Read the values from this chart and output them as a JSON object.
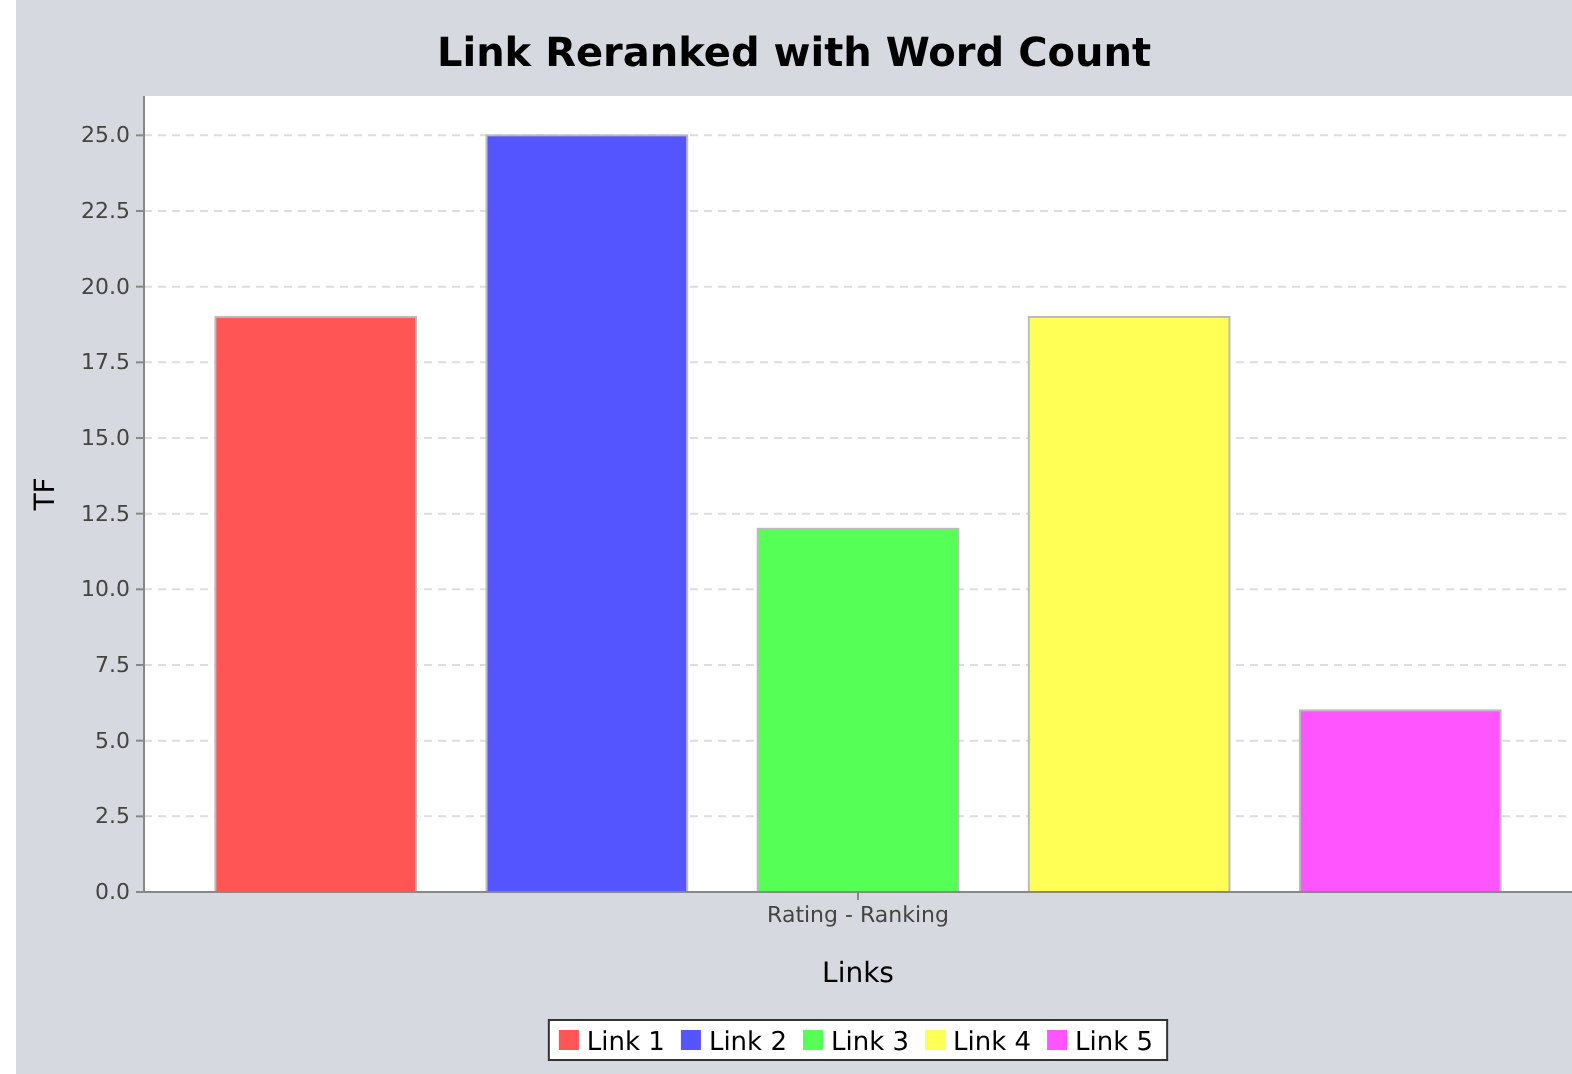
{
  "chart_data": {
    "type": "bar",
    "title": "Link Reranked with Word Count",
    "xlabel": "Links",
    "ylabel": "TF",
    "categories": [
      "Rating - Ranking"
    ],
    "series": [
      {
        "name": "Link 1",
        "color": "#ff5555",
        "values": [
          19
        ]
      },
      {
        "name": "Link 2",
        "color": "#5555ff",
        "values": [
          25
        ]
      },
      {
        "name": "Link 3",
        "color": "#55ff55",
        "values": [
          12
        ]
      },
      {
        "name": "Link 4",
        "color": "#ffff55",
        "values": [
          19
        ]
      },
      {
        "name": "Link 5",
        "color": "#ff55ff",
        "values": [
          6
        ]
      }
    ],
    "ylim": [
      0,
      26.3
    ],
    "yticks": [
      {
        "value": 0,
        "label": "0.0"
      },
      {
        "value": 2.5,
        "label": "2.5"
      },
      {
        "value": 5,
        "label": "5.0"
      },
      {
        "value": 7.5,
        "label": "7.5"
      },
      {
        "value": 10,
        "label": "10.0"
      },
      {
        "value": 12.5,
        "label": "12.5"
      },
      {
        "value": 15,
        "label": "15.0"
      },
      {
        "value": 17.5,
        "label": "17.5"
      },
      {
        "value": 20,
        "label": "20.0"
      },
      {
        "value": 22.5,
        "label": "22.5"
      },
      {
        "value": 25,
        "label": "25.0"
      }
    ],
    "grid": "y",
    "legend": "bottom"
  }
}
